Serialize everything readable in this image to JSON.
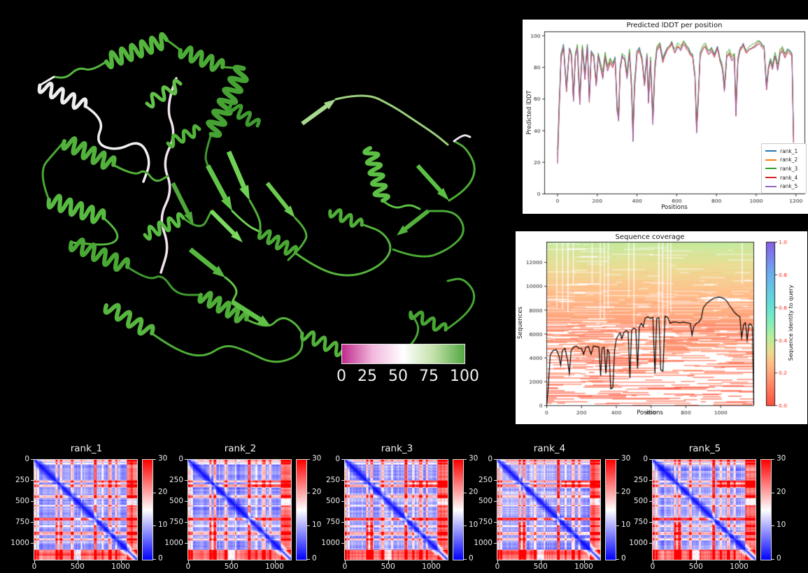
{
  "page": {
    "background": "#000000"
  },
  "protein": {
    "description": "green ribbon protein structure on black background",
    "palette": [
      "#46a233",
      "#55b53e",
      "#6bcb4f",
      "#7bd95f",
      "#f0f0f0",
      "#f2e2ee",
      "#a8d98c"
    ]
  },
  "scalebar": {
    "labels": [
      "0",
      "25",
      "50",
      "75",
      "100"
    ],
    "gradient": [
      [
        "0",
        "#bf2a8c"
      ],
      [
        "0.25",
        "#f2b8dd"
      ],
      [
        "0.5",
        "#ffffff"
      ],
      [
        "0.75",
        "#c2e0a8"
      ],
      [
        "1",
        "#52a742"
      ]
    ]
  },
  "chart_data": [
    {
      "id": "plddt",
      "type": "line",
      "title": "Predicted lDDT per position",
      "xlabel": "Positions",
      "ylabel": "Predicted lDDT",
      "xlim": [
        -65,
        1245
      ],
      "ylim": [
        0,
        102.5
      ],
      "xticks": [
        0,
        200,
        400,
        600,
        800,
        1000,
        1200
      ],
      "yticks": [
        0,
        20,
        40,
        60,
        80,
        100
      ],
      "legend_position": "lower right",
      "x": [
        0,
        8,
        18,
        30,
        45,
        60,
        70,
        80,
        90,
        100,
        112,
        125,
        138,
        150,
        160,
        170,
        182,
        195,
        205,
        215,
        228,
        240,
        252,
        265,
        278,
        290,
        300,
        308,
        315,
        325,
        338,
        350,
        362,
        372,
        380,
        388,
        400,
        412,
        425,
        438,
        450,
        458,
        468,
        480,
        490,
        500,
        515,
        530,
        545,
        560,
        575,
        590,
        605,
        620,
        635,
        650,
        665,
        680,
        692,
        700,
        708,
        718,
        730,
        745,
        760,
        775,
        790,
        805,
        818,
        830,
        840,
        852,
        865,
        878,
        890,
        898,
        908,
        920,
        935,
        950,
        965,
        980,
        995,
        1010,
        1025,
        1040,
        1052,
        1062,
        1072,
        1082,
        1095,
        1108,
        1120,
        1132,
        1145,
        1158,
        1170,
        1180,
        1188
      ],
      "base": [
        25,
        55,
        88,
        94,
        67,
        92,
        88,
        61,
        88,
        93,
        60,
        93,
        75,
        94,
        61,
        90,
        88,
        70,
        88,
        82,
        75,
        88,
        80,
        85,
        82,
        86,
        55,
        49,
        80,
        88,
        86,
        75,
        90,
        70,
        38,
        70,
        90,
        92,
        86,
        70,
        88,
        60,
        85,
        48,
        80,
        92,
        95,
        85,
        90,
        93,
        96,
        90,
        94,
        92,
        96,
        93,
        90,
        88,
        75,
        42,
        60,
        88,
        92,
        94,
        90,
        92,
        88,
        93,
        85,
        80,
        67,
        88,
        90,
        86,
        88,
        53,
        85,
        92,
        95,
        90,
        92,
        93,
        94,
        96,
        95,
        93,
        68,
        80,
        85,
        80,
        88,
        80,
        90,
        92,
        88,
        91,
        90,
        88,
        36
      ],
      "series": [
        {
          "name": "rank_1",
          "color": "#1f77b4",
          "dip_scale": 1.0,
          "dy": 0
        },
        {
          "name": "rank_2",
          "color": "#ff7f0e",
          "dip_scale": 1.02,
          "dy": -0.5
        },
        {
          "name": "rank_3",
          "color": "#2ca02c",
          "dip_scale": 0.97,
          "dy": 0.7
        },
        {
          "name": "rank_4",
          "color": "#d62728",
          "dip_scale": 1.05,
          "dy": -1.0
        },
        {
          "name": "rank_5",
          "color": "#9467bd",
          "dip_scale": 1.07,
          "dy": -0.5
        }
      ]
    },
    {
      "id": "coverage",
      "type": "coverage",
      "title": "Sequence coverage",
      "xlabel": "Positions",
      "ylabel": "Sequences",
      "colorbar_label": "Sequence identity to query",
      "xlim": [
        0,
        1190
      ],
      "ylim": [
        0,
        13700
      ],
      "xticks": [
        0,
        200,
        400,
        600,
        800,
        1000
      ],
      "yticks": [
        0,
        2000,
        4000,
        6000,
        8000,
        10000,
        12000
      ],
      "cbar_ticks": [
        "1.0",
        "0.8",
        "0.6",
        "0.4",
        "0.2",
        "0.0"
      ],
      "identity_colormap": [
        [
          0,
          "#ff1400"
        ],
        [
          0.18,
          "#ff7d47"
        ],
        [
          0.26,
          "#ffa95f"
        ],
        [
          0.33,
          "#e2d06b"
        ],
        [
          0.42,
          "#9fe87b"
        ],
        [
          0.52,
          "#55e8a8"
        ],
        [
          0.62,
          "#2fd3c8"
        ],
        [
          0.8,
          "#3a97e8"
        ],
        [
          1,
          "#6229e0"
        ]
      ],
      "msa_regions": [
        {
          "min_seq": 9700,
          "id_from": 0.26,
          "id_span": 0.14,
          "density": 0.93
        },
        {
          "min_seq": 6800,
          "id_from": 0.17,
          "id_span": 0.09,
          "density": 0.8
        },
        {
          "min_seq": 4500,
          "id_from": 0.1,
          "id_span": 0.08,
          "density": 0.5
        },
        {
          "min_seq": 2500,
          "id_from": 0.07,
          "id_span": 0.08,
          "density": 0.34
        },
        {
          "min_seq": 0,
          "id_from": 0.05,
          "id_span": 0.06,
          "density": 0.22
        }
      ],
      "white_streaks": [
        [
          55,
          6,
          95
        ],
        [
          88,
          5,
          95
        ],
        [
          118,
          8,
          100
        ],
        [
          150,
          4,
          60
        ],
        [
          258,
          4,
          60
        ],
        [
          305,
          6,
          110
        ],
        [
          328,
          5,
          110
        ],
        [
          350,
          7,
          95
        ],
        [
          468,
          6,
          80
        ],
        [
          498,
          7,
          150
        ],
        [
          640,
          8,
          160
        ],
        [
          663,
          7,
          160
        ],
        [
          692,
          6,
          120
        ],
        [
          710,
          4,
          100
        ],
        [
          1120,
          5,
          60
        ]
      ],
      "coverage_line": [
        [
          0,
          50
        ],
        [
          8,
          1400
        ],
        [
          20,
          4200
        ],
        [
          35,
          4600
        ],
        [
          55,
          4700
        ],
        [
          70,
          4200
        ],
        [
          80,
          3400
        ],
        [
          90,
          4600
        ],
        [
          105,
          4800
        ],
        [
          120,
          3800
        ],
        [
          130,
          2700
        ],
        [
          140,
          4600
        ],
        [
          155,
          4900
        ],
        [
          170,
          5000
        ],
        [
          185,
          4800
        ],
        [
          200,
          4800
        ],
        [
          212,
          4300
        ],
        [
          225,
          4900
        ],
        [
          240,
          4950
        ],
        [
          255,
          4300
        ],
        [
          268,
          5000
        ],
        [
          285,
          4950
        ],
        [
          300,
          4900
        ],
        [
          310,
          2500
        ],
        [
          318,
          4800
        ],
        [
          330,
          4900
        ],
        [
          340,
          2700
        ],
        [
          350,
          4700
        ],
        [
          358,
          4500
        ],
        [
          368,
          1400
        ],
        [
          380,
          1500
        ],
        [
          390,
          4600
        ],
        [
          400,
          5600
        ],
        [
          412,
          5900
        ],
        [
          422,
          6100
        ],
        [
          432,
          5600
        ],
        [
          442,
          6100
        ],
        [
          455,
          6300
        ],
        [
          468,
          6200
        ],
        [
          478,
          2300
        ],
        [
          488,
          6300
        ],
        [
          500,
          6500
        ],
        [
          512,
          6400
        ],
        [
          522,
          3100
        ],
        [
          532,
          6600
        ],
        [
          545,
          6900
        ],
        [
          555,
          6600
        ],
        [
          565,
          7300
        ],
        [
          580,
          7450
        ],
        [
          595,
          7300
        ],
        [
          610,
          7400
        ],
        [
          622,
          2700
        ],
        [
          632,
          7300
        ],
        [
          645,
          7400
        ],
        [
          655,
          3000
        ],
        [
          668,
          2900
        ],
        [
          680,
          7500
        ],
        [
          695,
          7400
        ],
        [
          710,
          6900
        ],
        [
          725,
          7000
        ],
        [
          745,
          7000
        ],
        [
          765,
          6950
        ],
        [
          785,
          7000
        ],
        [
          805,
          6950
        ],
        [
          825,
          6900
        ],
        [
          835,
          5900
        ],
        [
          845,
          6600
        ],
        [
          860,
          6900
        ],
        [
          875,
          7000
        ],
        [
          888,
          7300
        ],
        [
          900,
          8200
        ],
        [
          915,
          8500
        ],
        [
          930,
          8700
        ],
        [
          945,
          8850
        ],
        [
          960,
          9000
        ],
        [
          975,
          9050
        ],
        [
          990,
          9100
        ],
        [
          1005,
          9050
        ],
        [
          1020,
          8950
        ],
        [
          1035,
          8750
        ],
        [
          1050,
          8400
        ],
        [
          1065,
          8100
        ],
        [
          1080,
          7800
        ],
        [
          1095,
          7600
        ],
        [
          1110,
          7450
        ],
        [
          1120,
          5700
        ],
        [
          1132,
          6800
        ],
        [
          1142,
          6950
        ],
        [
          1152,
          5500
        ],
        [
          1162,
          6800
        ],
        [
          1172,
          6850
        ],
        [
          1182,
          6600
        ],
        [
          1190,
          100
        ]
      ]
    },
    {
      "id": "pae",
      "type": "heatmap-grid",
      "colormap": "bwr",
      "vmin": 0,
      "vmax": 30,
      "n": 1190,
      "xticks": [
        0,
        500,
        1000
      ],
      "yticks": [
        0,
        250,
        500,
        750,
        1000
      ],
      "cbar_ticks": [
        30,
        20,
        10,
        0
      ],
      "high_error_bands": [
        [
          0,
          18,
          9
        ],
        [
          38,
          48,
          7
        ],
        [
          248,
          268,
          9
        ],
        [
          298,
          318,
          11
        ],
        [
          425,
          445,
          9
        ],
        [
          540,
          552,
          6
        ],
        [
          695,
          718,
          16
        ],
        [
          785,
          795,
          6
        ],
        [
          858,
          895,
          10
        ],
        [
          942,
          958,
          8
        ],
        [
          1078,
          1190,
          14
        ]
      ],
      "block": {
        "rows": [
          240,
          330
        ],
        "cols": [
          730,
          1190
        ]
      },
      "gap_cols": [
        455,
        545
      ],
      "panels": [
        {
          "title": "rank_1",
          "seed": 3
        },
        {
          "title": "rank_2",
          "seed": 5
        },
        {
          "title": "rank_3",
          "seed": 8
        },
        {
          "title": "rank_4",
          "seed": 13
        },
        {
          "title": "rank_5",
          "seed": 21
        }
      ]
    }
  ]
}
